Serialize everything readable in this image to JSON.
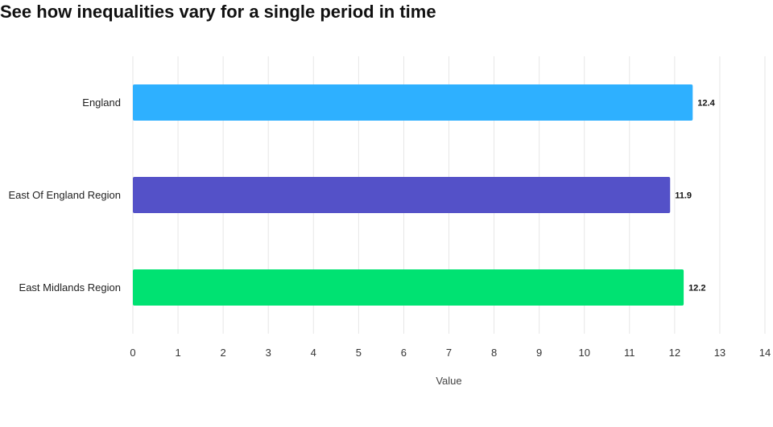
{
  "title": "See how inequalities vary for a single period in time",
  "chart_data": {
    "type": "bar",
    "orientation": "horizontal",
    "categories": [
      "England",
      "East Of England Region",
      "East Midlands Region"
    ],
    "values": [
      12.4,
      11.9,
      12.2
    ],
    "data_labels": [
      "12.4",
      "11.9",
      "12.2"
    ],
    "colors": [
      "#2eb0ff",
      "#5451c8",
      "#00e272"
    ],
    "xlabel": "Value",
    "ylabel": "",
    "xlim": [
      0,
      14
    ],
    "xticks": [
      0,
      1,
      2,
      3,
      4,
      5,
      6,
      7,
      8,
      9,
      10,
      11,
      12,
      13,
      14
    ],
    "grid": true,
    "legend": "none"
  }
}
